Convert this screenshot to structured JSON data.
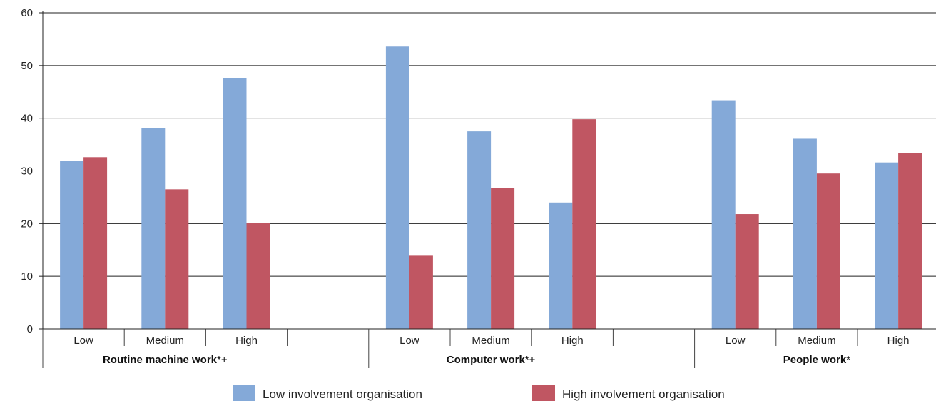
{
  "chart_data": {
    "type": "bar",
    "ylim": [
      0,
      60
    ],
    "yticks": [
      0,
      10,
      20,
      30,
      40,
      50,
      60
    ],
    "grid": true,
    "legend_position": "bottom",
    "groups": [
      {
        "label": "Routine machine work",
        "marker": "*+",
        "categories": [
          "Low",
          "Medium",
          "High"
        ],
        "values": {
          "low_involvement": [
            31.9,
            38.1,
            47.6
          ],
          "high_involvement": [
            32.6,
            26.5,
            20.1
          ]
        }
      },
      {
        "label": "Computer work",
        "marker": "*+",
        "categories": [
          "Low",
          "Medium",
          "High"
        ],
        "values": {
          "low_involvement": [
            53.6,
            37.5,
            24.0
          ],
          "high_involvement": [
            13.9,
            26.7,
            39.8
          ]
        }
      },
      {
        "label": "People work",
        "marker": "*",
        "categories": [
          "Low",
          "Medium",
          "High"
        ],
        "values": {
          "low_involvement": [
            43.4,
            36.1,
            31.6
          ],
          "high_involvement": [
            21.8,
            29.5,
            33.4
          ]
        }
      }
    ],
    "series": [
      {
        "key": "low_involvement",
        "name": "Low involvement organisation",
        "color": "#84a9d8"
      },
      {
        "key": "high_involvement",
        "name": "High involvement organisation",
        "color": "#c05662"
      }
    ]
  }
}
